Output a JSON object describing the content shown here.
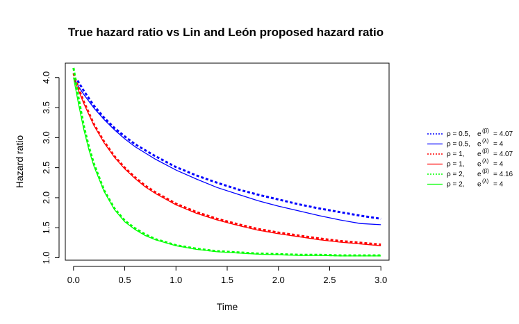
{
  "chart_data": {
    "type": "line",
    "title": "True hazard ratio vs Lin and León proposed hazard ratio",
    "xlabel": "Time",
    "ylabel": "Hazard ratio",
    "xlim": [
      -0.08,
      3.08
    ],
    "ylim": [
      0.96,
      4.24
    ],
    "xticks": [
      0.0,
      0.5,
      1.0,
      1.5,
      2.0,
      2.5,
      3.0
    ],
    "xtick_labels": [
      "0.0",
      "0.5",
      "1.0",
      "1.5",
      "2.0",
      "2.5",
      "3.0"
    ],
    "yticks": [
      1.0,
      1.5,
      2.0,
      2.5,
      3.0,
      3.5,
      4.0
    ],
    "ytick_labels": [
      "1.0",
      "1.5",
      "2.0",
      "2.5",
      "3.0",
      "3.5",
      "4.0"
    ],
    "legend_position": "right",
    "series": [
      {
        "color": "#0000ff",
        "style": "dotted",
        "label": "ρ = 0.5,",
        "exp_label": "e",
        "exp_sup": "(β̄)",
        "exp_value": "= 4.07",
        "x": [
          0.04,
          0.1,
          0.2,
          0.3,
          0.4,
          0.5,
          0.6,
          0.8,
          1.0,
          1.2,
          1.4,
          1.6,
          1.8,
          2.0,
          2.2,
          2.4,
          2.6,
          2.8,
          3.0
        ],
        "y": [
          3.95,
          3.78,
          3.53,
          3.33,
          3.16,
          3.02,
          2.89,
          2.69,
          2.51,
          2.37,
          2.25,
          2.14,
          2.05,
          1.97,
          1.89,
          1.82,
          1.76,
          1.7,
          1.65
        ]
      },
      {
        "color": "#0000ff",
        "style": "solid",
        "label": "ρ = 0.5,",
        "exp_label": "e",
        "exp_sup": "(λ)",
        "exp_value": "= 4",
        "x": [
          0.0,
          0.05,
          0.1,
          0.2,
          0.3,
          0.4,
          0.5,
          0.6,
          0.8,
          1.0,
          1.2,
          1.4,
          1.6,
          1.8,
          2.0,
          2.2,
          2.4,
          2.6,
          2.8,
          3.0
        ],
        "y": [
          4.0,
          3.85,
          3.72,
          3.49,
          3.3,
          3.13,
          2.98,
          2.85,
          2.64,
          2.46,
          2.31,
          2.17,
          2.06,
          1.95,
          1.86,
          1.78,
          1.7,
          1.63,
          1.57,
          1.55
        ]
      },
      {
        "color": "#ff0000",
        "style": "dotted",
        "label": "ρ = 1,",
        "exp_label": "e",
        "exp_sup": "(β̄)",
        "exp_value": "= 4.07",
        "x": [
          0.0,
          0.05,
          0.1,
          0.2,
          0.3,
          0.4,
          0.5,
          0.6,
          0.7,
          0.8,
          1.0,
          1.2,
          1.4,
          1.6,
          1.8,
          2.0,
          2.2,
          2.4,
          2.6,
          2.8,
          3.0
        ],
        "y": [
          4.07,
          3.82,
          3.6,
          3.22,
          2.93,
          2.69,
          2.5,
          2.34,
          2.2,
          2.09,
          1.9,
          1.76,
          1.65,
          1.56,
          1.48,
          1.42,
          1.37,
          1.32,
          1.28,
          1.25,
          1.22
        ]
      },
      {
        "color": "#ff0000",
        "style": "solid",
        "label": "ρ = 1,",
        "exp_label": "e",
        "exp_sup": "(λ)",
        "exp_value": "= 4",
        "x": [
          0.0,
          0.05,
          0.1,
          0.2,
          0.3,
          0.4,
          0.5,
          0.6,
          0.7,
          0.8,
          1.0,
          1.2,
          1.4,
          1.6,
          1.8,
          2.0,
          2.2,
          2.4,
          2.6,
          2.8,
          3.0
        ],
        "y": [
          4.0,
          3.78,
          3.57,
          3.2,
          2.91,
          2.67,
          2.48,
          2.32,
          2.18,
          2.07,
          1.88,
          1.74,
          1.63,
          1.54,
          1.46,
          1.4,
          1.35,
          1.3,
          1.26,
          1.23,
          1.2
        ]
      },
      {
        "color": "#00ff00",
        "style": "dotted",
        "label": "ρ = 2,",
        "exp_label": "e",
        "exp_sup": "(β̄)",
        "exp_value": "= 4.16",
        "x": [
          0.0,
          0.05,
          0.1,
          0.15,
          0.2,
          0.3,
          0.4,
          0.5,
          0.6,
          0.7,
          0.8,
          1.0,
          1.2,
          1.4,
          1.6,
          1.8,
          2.0,
          2.2,
          2.4,
          2.6,
          2.8,
          3.0
        ],
        "y": [
          4.16,
          3.65,
          3.2,
          2.85,
          2.56,
          2.12,
          1.82,
          1.62,
          1.49,
          1.39,
          1.31,
          1.21,
          1.15,
          1.11,
          1.09,
          1.07,
          1.06,
          1.05,
          1.05,
          1.04,
          1.04,
          1.04
        ]
      },
      {
        "color": "#00ff00",
        "style": "solid",
        "label": "ρ = 2,",
        "exp_label": "e",
        "exp_sup": "(λ)",
        "exp_value": "= 4",
        "x": [
          0.0,
          0.05,
          0.1,
          0.15,
          0.2,
          0.3,
          0.4,
          0.5,
          0.6,
          0.7,
          0.8,
          1.0,
          1.2,
          1.4,
          1.6,
          1.8,
          2.0,
          2.2,
          2.4,
          2.6,
          2.8,
          3.0
        ],
        "y": [
          4.0,
          3.55,
          3.14,
          2.8,
          2.52,
          2.1,
          1.8,
          1.6,
          1.47,
          1.37,
          1.3,
          1.2,
          1.14,
          1.1,
          1.08,
          1.06,
          1.05,
          1.04,
          1.04,
          1.03,
          1.03,
          1.03
        ]
      }
    ]
  }
}
